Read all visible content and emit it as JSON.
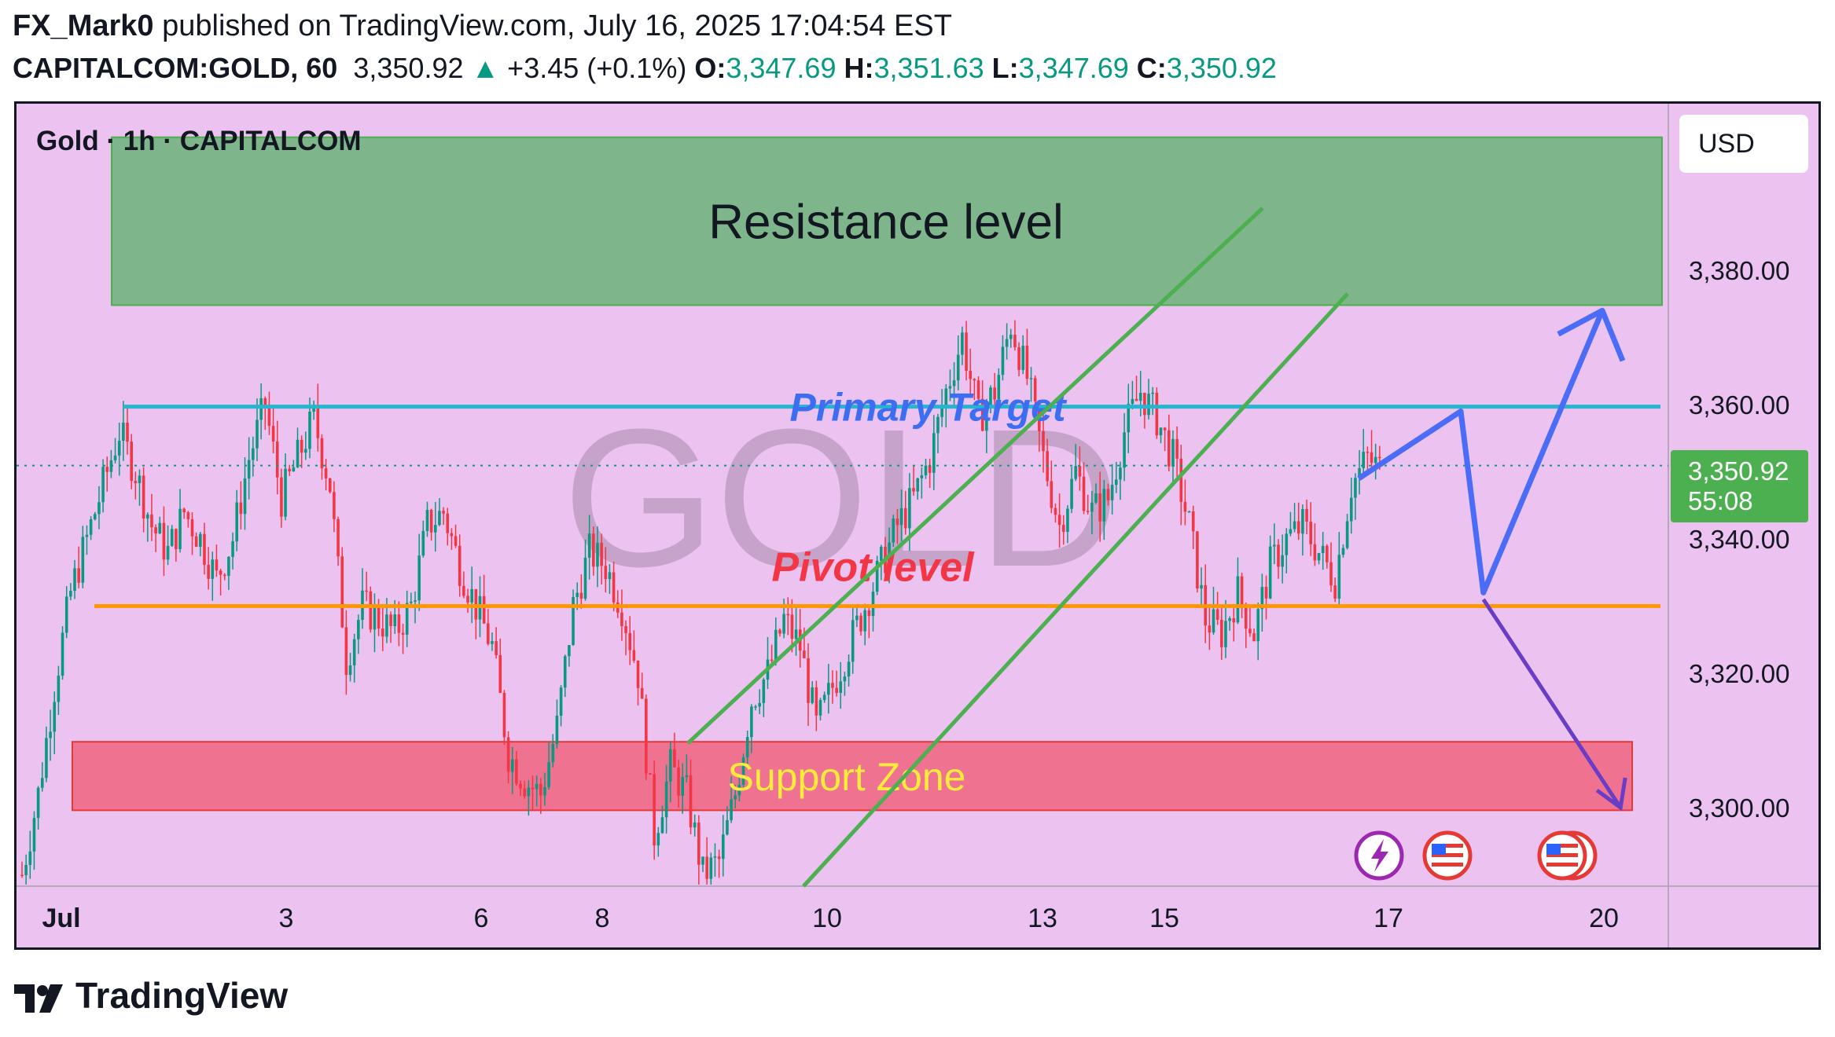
{
  "header": {
    "author": "FX_Mark0",
    "published_text": " published on TradingView.com, July 16, 2025 17:04:54 EST",
    "symbol": "CAPITALCOM:GOLD, 60",
    "last": "3,350.92",
    "change": "+3.45 (+0.1%)",
    "o_label": "O:",
    "o": "3,347.69",
    "h_label": "H:",
    "h": "3,351.63",
    "l_label": "L:",
    "l": "3,347.69",
    "c_label": "C:",
    "c": "3,350.92"
  },
  "legend_title": "Gold · 1h · CAPITALCOM",
  "watermark": "GOLD",
  "currency": "USD",
  "price_tag": {
    "price": "3,350.92",
    "countdown": "55:08"
  },
  "brand": "TradingView",
  "colors": {
    "background": "#ecc3f0",
    "up": "#089981",
    "down": "#f23645",
    "resistance": "#80b489",
    "support": "#f07291",
    "pivot": "#ff9800",
    "target": "#26b5cf",
    "channel": "#4caf50",
    "projection": "#4a6cf7",
    "projection_down": "#6a3ec4"
  },
  "chart_data": {
    "type": "candlestick",
    "timeframe": "1h",
    "x_tick_labels": [
      "Jul",
      "3",
      "6",
      "8",
      "10",
      "13",
      "15",
      "17",
      "20"
    ],
    "y_tick_labels": [
      "3,380.00",
      "3,360.00",
      "3,340.00",
      "3,320.00",
      "3,300.00"
    ],
    "y_ticks": [
      3380,
      3360,
      3340,
      3320,
      3300
    ],
    "ylim": [
      3288,
      3412
    ],
    "last_price": 3350.92,
    "annotations": {
      "resistance": {
        "label": "Resistance level",
        "low": 3374.8,
        "high": 3399.8
      },
      "primary_target": {
        "label": "Primary Target",
        "price": 3359.7
      },
      "pivot": {
        "label": "Pivot level",
        "price": 3330.0
      },
      "support": {
        "label": "Support Zone",
        "low": 3299.6,
        "high": 3309.8
      }
    },
    "projection_path": [
      {
        "date": "Jul 16 17:00",
        "price": 3349
      },
      {
        "date": "Jul 17 20:00",
        "price": 3359
      },
      {
        "date": "Jul 18 08:00",
        "price": 3332
      },
      {
        "date": "Jul 20 00:00",
        "price": 3374
      }
    ],
    "alternative_path": [
      {
        "date": "Jul 18 08:00",
        "price": 3331
      },
      {
        "date": "Jul 19 22:00",
        "price": 3300
      }
    ],
    "candles_approx": [
      3290,
      3302,
      3318,
      3332,
      3340,
      3348,
      3356,
      3350,
      3342,
      3338,
      3344,
      3340,
      3334,
      3340,
      3352,
      3360,
      3346,
      3352,
      3358,
      3348,
      3322,
      3330,
      3328,
      3326,
      3330,
      3342,
      3344,
      3336,
      3330,
      3324,
      3308,
      3304,
      3302,
      3312,
      3330,
      3338,
      3336,
      3330,
      3320,
      3296,
      3306,
      3302,
      3290,
      3292,
      3302,
      3316,
      3320,
      3328,
      3324,
      3312,
      3318,
      3324,
      3330,
      3336,
      3342,
      3346,
      3352,
      3362,
      3370,
      3358,
      3362,
      3372,
      3364,
      3352,
      3342,
      3350,
      3344,
      3346,
      3356,
      3362,
      3358,
      3352,
      3342,
      3328,
      3326,
      3332,
      3326,
      3336,
      3340,
      3342,
      3338,
      3334,
      3348,
      3352,
      3350
    ]
  }
}
